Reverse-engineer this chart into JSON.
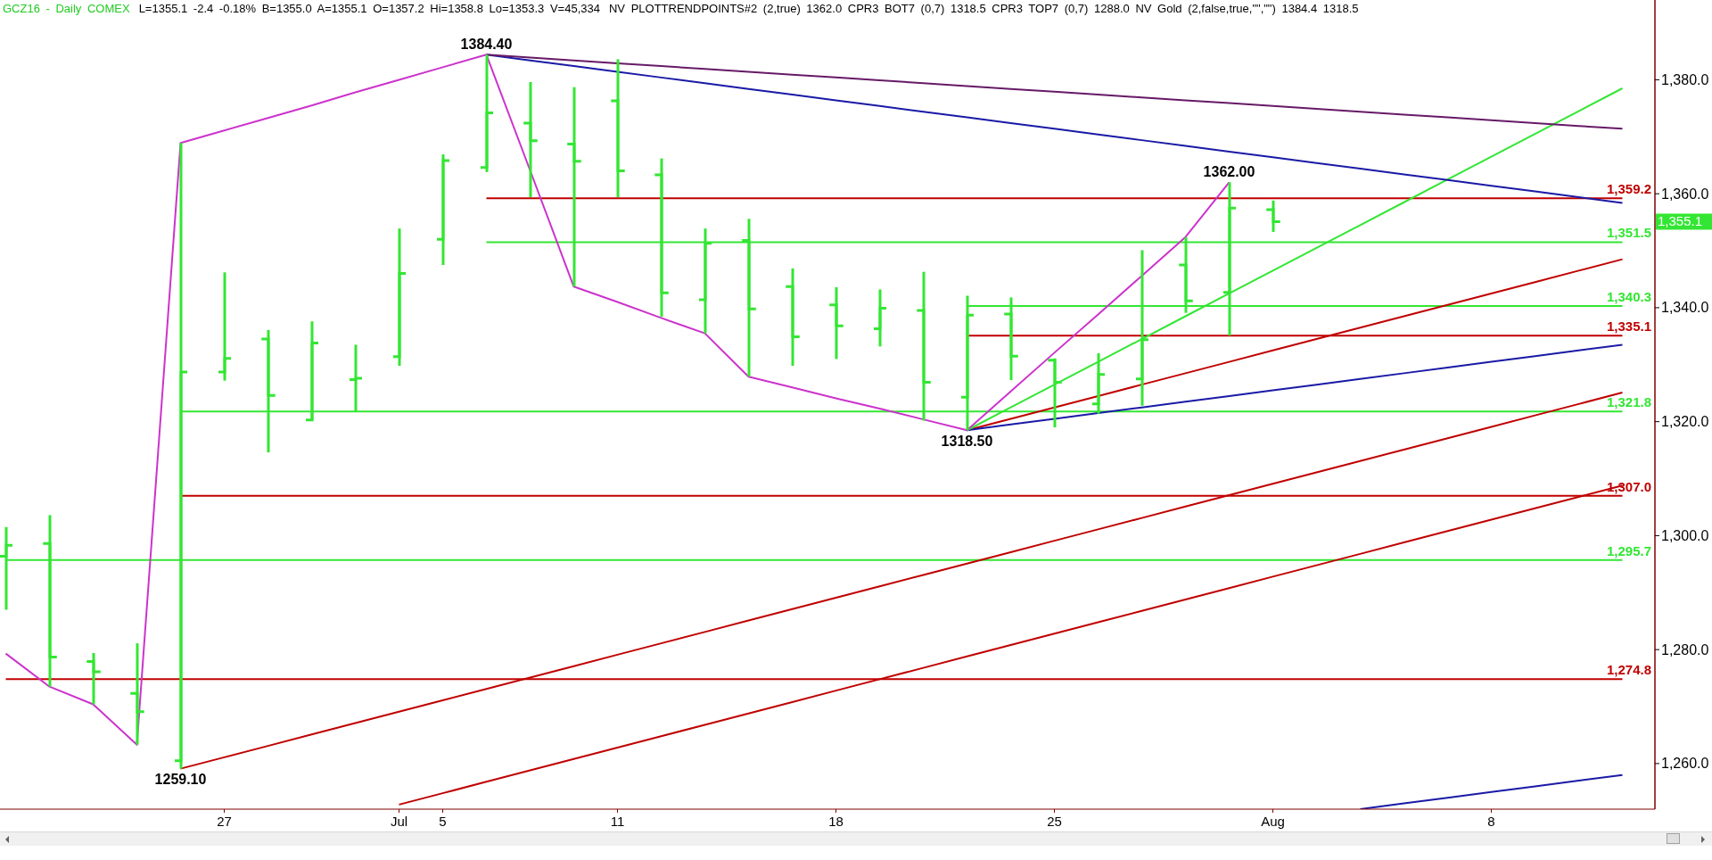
{
  "chart_data": {
    "type": "candlestick",
    "title": "GCZ16 - Daily COMEX",
    "subtitle": "L=1355.1 -2.4 -0.18% B=1355.0 A=1355.1 O=1357.2 Hi=1358.8 Lo=1353.3 V=45,334",
    "categories": [
      null,
      null,
      null,
      null,
      null,
      "27",
      null,
      null,
      null,
      "Jul",
      "5",
      null,
      null,
      null,
      "11",
      null,
      null,
      null,
      null,
      "18",
      null,
      null,
      null,
      null,
      "25",
      null,
      null,
      null,
      null,
      "Aug",
      null,
      null,
      null,
      null,
      "8",
      null,
      null,
      null
    ],
    "color": "#33e633",
    "ohlc": [
      [
        1296.4,
        1301.5,
        1287.0,
        1298.3
      ],
      [
        1298.6,
        1303.6,
        1273.5,
        1278.7
      ],
      [
        1277.9,
        1279.4,
        1270.4,
        1276.1
      ],
      [
        1272.3,
        1281.1,
        1263.3,
        1269.1
      ],
      [
        1260.5,
        1368.9,
        1259.1,
        1328.7
      ],
      [
        1328.7,
        1346.2,
        1327.2,
        1331.1
      ],
      [
        1334.5,
        1336.1,
        1314.6,
        1324.6
      ],
      [
        1320.3,
        1337.6,
        1320.2,
        1333.8
      ],
      [
        1327.4,
        1333.5,
        1321.8,
        1327.6
      ],
      [
        1331.4,
        1353.9,
        1329.8,
        1346.0
      ],
      [
        1352.0,
        1366.9,
        1347.5,
        1365.8
      ],
      [
        1364.6,
        1384.4,
        1363.8,
        1374.2
      ],
      [
        1372.4,
        1379.6,
        1359.4,
        1369.3
      ],
      [
        1368.7,
        1378.7,
        1343.7,
        1365.7
      ],
      [
        1376.3,
        1383.6,
        1359.4,
        1364.0
      ],
      [
        1363.3,
        1366.2,
        1338.4,
        1342.6
      ],
      [
        1341.4,
        1353.9,
        1335.5,
        1351.3
      ],
      [
        1351.8,
        1355.6,
        1327.9,
        1339.8
      ],
      [
        1343.7,
        1346.9,
        1329.8,
        1334.9
      ],
      [
        1340.5,
        1343.6,
        1331.0,
        1336.8
      ],
      [
        1336.3,
        1343.2,
        1333.2,
        1339.9
      ],
      [
        1339.5,
        1346.3,
        1320.2,
        1326.9
      ],
      [
        1324.3,
        1342.1,
        1318.5,
        1338.7
      ],
      [
        1338.9,
        1341.8,
        1327.3,
        1331.5
      ],
      [
        1330.8,
        1331.1,
        1319.0,
        1326.9
      ],
      [
        1323.1,
        1332.0,
        1321.4,
        1328.3
      ],
      [
        1327.5,
        1350.1,
        1322.8,
        1334.4
      ],
      [
        1347.5,
        1352.4,
        1339.1,
        1341.2
      ],
      [
        1342.7,
        1362.0,
        1335.1,
        1357.5
      ],
      [
        1357.2,
        1358.8,
        1353.3,
        1355.1
      ],
      null,
      null,
      null,
      null,
      null,
      null,
      null,
      null
    ],
    "series": [
      {
        "type": "line",
        "color": "#c00000",
        "values": [
          1274.8,
          1274.8,
          1274.8,
          1274.8,
          1274.8,
          1274.8,
          1274.8,
          1274.8,
          1274.8,
          1274.8,
          1274.8,
          1274.8,
          1274.8,
          1274.8,
          1274.8,
          1274.8,
          1274.8,
          1274.8,
          1274.8,
          1274.8,
          1274.8,
          1274.8,
          1274.8,
          1274.8,
          1274.8,
          1274.8,
          1274.8,
          1274.8,
          1274.8,
          1274.8,
          1274.8,
          1274.8,
          1274.8,
          1274.8,
          1274.8,
          1274.8,
          1274.8,
          1274.8
        ],
        "value_labels": [
          null,
          null,
          null,
          null,
          null,
          null,
          null,
          null,
          null,
          null,
          null,
          null,
          null,
          null,
          null,
          null,
          null,
          null,
          null,
          null,
          null,
          null,
          null,
          null,
          null,
          null,
          null,
          null,
          null,
          null,
          null,
          null,
          null,
          null,
          null,
          null,
          null,
          "1,274.8"
        ]
      },
      {
        "type": "line",
        "color": "#33e633",
        "values": [
          1295.7,
          1295.7,
          1295.7,
          1295.7,
          1295.7,
          1295.7,
          1295.7,
          1295.7,
          1295.7,
          1295.7,
          1295.7,
          1295.7,
          1295.7,
          1295.7,
          1295.7,
          1295.7,
          1295.7,
          1295.7,
          1295.7,
          1295.7,
          1295.7,
          1295.7,
          1295.7,
          1295.7,
          1295.7,
          1295.7,
          1295.7,
          1295.7,
          1295.7,
          1295.7,
          1295.7,
          1295.7,
          1295.7,
          1295.7,
          1295.7,
          1295.7,
          1295.7,
          1295.7
        ],
        "value_labels": [
          null,
          null,
          null,
          null,
          null,
          null,
          null,
          null,
          null,
          null,
          null,
          null,
          null,
          null,
          null,
          null,
          null,
          null,
          null,
          null,
          null,
          null,
          null,
          null,
          null,
          null,
          null,
          null,
          null,
          null,
          null,
          null,
          null,
          null,
          null,
          null,
          null,
          "1,295.7"
        ]
      },
      {
        "type": "line",
        "color": "#c00000",
        "values": [
          null,
          null,
          null,
          null,
          1307,
          1307,
          1307,
          1307,
          1307,
          1307,
          1307,
          1307,
          1307,
          1307,
          1307,
          1307,
          1307,
          1307,
          1307,
          1307,
          1307,
          1307,
          1307,
          1307,
          1307,
          1307,
          1307,
          1307,
          1307,
          1307,
          1307,
          1307,
          1307,
          1307,
          1307,
          1307,
          1307,
          1307
        ],
        "value_labels": [
          null,
          null,
          null,
          null,
          null,
          null,
          null,
          null,
          null,
          null,
          null,
          null,
          null,
          null,
          null,
          null,
          null,
          null,
          null,
          null,
          null,
          null,
          null,
          null,
          null,
          null,
          null,
          null,
          null,
          null,
          null,
          null,
          null,
          null,
          null,
          null,
          null,
          "1,307.0"
        ]
      },
      {
        "type": "line",
        "color": "#33e633",
        "values": [
          null,
          null,
          null,
          null,
          1321.8,
          1321.8,
          1321.8,
          1321.8,
          1321.8,
          1321.8,
          1321.8,
          1321.8,
          1321.8,
          1321.8,
          1321.8,
          1321.8,
          1321.8,
          1321.8,
          1321.8,
          1321.8,
          1321.8,
          1321.8,
          1321.8,
          1321.8,
          1321.8,
          1321.8,
          1321.8,
          1321.8,
          1321.8,
          1321.8,
          1321.8,
          1321.8,
          1321.8,
          1321.8,
          1321.8,
          1321.8,
          1321.8,
          1321.8
        ],
        "value_labels": [
          null,
          null,
          null,
          null,
          null,
          null,
          null,
          null,
          null,
          null,
          null,
          null,
          null,
          null,
          null,
          null,
          null,
          null,
          null,
          null,
          null,
          null,
          null,
          null,
          null,
          null,
          null,
          null,
          null,
          null,
          null,
          null,
          null,
          null,
          null,
          null,
          null,
          "1,321.8"
        ]
      },
      {
        "type": "line",
        "color": "#c00000",
        "values": [
          null,
          null,
          null,
          null,
          null,
          null,
          null,
          null,
          null,
          null,
          null,
          null,
          null,
          null,
          null,
          null,
          null,
          null,
          null,
          null,
          null,
          null,
          1335.1,
          1335.1,
          1335.1,
          1335.1,
          1335.1,
          1335.1,
          1335.1,
          1335.1,
          1335.1,
          1335.1,
          1335.1,
          1335.1,
          1335.1,
          1335.1,
          1335.1,
          1335.1
        ],
        "value_labels": [
          null,
          null,
          null,
          null,
          null,
          null,
          null,
          null,
          null,
          null,
          null,
          null,
          null,
          null,
          null,
          null,
          null,
          null,
          null,
          null,
          null,
          null,
          null,
          null,
          null,
          null,
          null,
          null,
          null,
          null,
          null,
          null,
          null,
          null,
          null,
          null,
          null,
          "1,335.1"
        ]
      },
      {
        "type": "line",
        "color": "#33e633",
        "values": [
          null,
          null,
          null,
          null,
          null,
          null,
          null,
          null,
          null,
          null,
          null,
          null,
          null,
          null,
          null,
          null,
          null,
          null,
          null,
          null,
          null,
          null,
          1340.3,
          1340.3,
          1340.3,
          1340.3,
          1340.3,
          1340.3,
          1340.3,
          1340.3,
          1340.3,
          1340.3,
          1340.3,
          1340.3,
          1340.3,
          1340.3,
          1340.3,
          1340.3
        ],
        "value_labels": [
          null,
          null,
          null,
          null,
          null,
          null,
          null,
          null,
          null,
          null,
          null,
          null,
          null,
          null,
          null,
          null,
          null,
          null,
          null,
          null,
          null,
          null,
          null,
          null,
          null,
          null,
          null,
          null,
          null,
          null,
          null,
          null,
          null,
          null,
          null,
          null,
          null,
          "1,340.3"
        ]
      },
      {
        "type": "line",
        "color": "#33e633",
        "values": [
          null,
          null,
          null,
          null,
          null,
          null,
          null,
          null,
          null,
          null,
          null,
          1351.5,
          1351.5,
          1351.5,
          1351.5,
          1351.5,
          1351.5,
          1351.5,
          1351.5,
          1351.5,
          1351.5,
          1351.5,
          1351.5,
          1351.5,
          1351.5,
          1351.5,
          1351.5,
          1351.5,
          1351.5,
          1351.5,
          1351.5,
          1351.5,
          1351.5,
          1351.5,
          1351.5,
          1351.5,
          1351.5,
          1351.5
        ],
        "value_labels": [
          null,
          null,
          null,
          null,
          null,
          null,
          null,
          null,
          null,
          null,
          null,
          null,
          null,
          null,
          null,
          null,
          null,
          null,
          null,
          null,
          null,
          null,
          null,
          null,
          null,
          null,
          null,
          null,
          null,
          null,
          null,
          null,
          null,
          null,
          null,
          null,
          null,
          "1,351.5"
        ]
      },
      {
        "type": "line",
        "color": "#c00000",
        "values": [
          null,
          null,
          null,
          null,
          null,
          null,
          null,
          null,
          null,
          null,
          null,
          1359.2,
          1359.2,
          1359.2,
          1359.2,
          1359.2,
          1359.2,
          1359.2,
          1359.2,
          1359.2,
          1359.2,
          1359.2,
          1359.2,
          1359.2,
          1359.2,
          1359.2,
          1359.2,
          1359.2,
          1359.2,
          1359.2,
          1359.2,
          1359.2,
          1359.2,
          1359.2,
          1359.2,
          1359.2,
          1359.2,
          1359.2
        ],
        "value_labels": [
          null,
          null,
          null,
          null,
          null,
          null,
          null,
          null,
          null,
          null,
          null,
          null,
          null,
          null,
          null,
          null,
          null,
          null,
          null,
          null,
          null,
          null,
          null,
          null,
          null,
          null,
          null,
          null,
          null,
          null,
          null,
          null,
          null,
          null,
          null,
          null,
          null,
          "1,359.2"
        ]
      },
      {
        "type": "line",
        "color": "#c00000",
        "values": [
          null,
          null,
          null,
          null,
          null,
          null,
          null,
          null,
          null,
          1252.8,
          1254.8,
          1256.8,
          1258.8,
          1260.8,
          1262.8,
          1264.8,
          1266.8,
          1268.8,
          1270.8,
          1272.8,
          1274.8,
          1276.8,
          1278.8,
          1280.8,
          1282.8,
          1284.8,
          1286.8,
          1288.8,
          1290.8,
          1292.8,
          1294.8,
          1296.8,
          1298.8,
          1300.8,
          1302.8,
          1304.8,
          1306.8,
          1308.8
        ]
      },
      {
        "type": "line",
        "color": "#c00000",
        "values": [
          null,
          null,
          null,
          null,
          1259.1,
          1261.1,
          1263.1,
          1265.1,
          1267.1,
          1269.1,
          1271.1,
          1273.1,
          1275.1,
          1277.1,
          1279.1,
          1281.1,
          1283.1,
          1285.1,
          1287.1,
          1289.1,
          1291.1,
          1293.1,
          1295.1,
          1297.1,
          1299.1,
          1301.1,
          1303.1,
          1305.1,
          1307.1,
          1309.1,
          1311.1,
          1313.1,
          1315.1,
          1317.1,
          1319.1,
          1321.1,
          1323.1,
          1325.1
        ]
      },
      {
        "type": "line",
        "color": "#1a1aa6",
        "values": [
          null,
          null,
          null,
          null,
          null,
          null,
          null,
          null,
          null,
          null,
          null,
          null,
          null,
          null,
          null,
          null,
          null,
          null,
          null,
          null,
          null,
          null,
          null,
          null,
          null,
          null,
          null,
          null,
          null,
          null,
          null,
          1252.0,
          1253.0,
          1254.0,
          1255.0,
          1256.0,
          1257.0,
          1258.0
        ]
      },
      {
        "type": "line",
        "color": "#c00000",
        "values": [
          null,
          null,
          null,
          null,
          null,
          null,
          null,
          null,
          null,
          null,
          null,
          null,
          null,
          null,
          null,
          null,
          null,
          null,
          null,
          null,
          null,
          null,
          1318.5,
          1320.5,
          1322.5,
          1324.5,
          1326.5,
          1328.5,
          1330.5,
          1332.5,
          1334.5,
          1336.5,
          1338.5,
          1340.5,
          1342.5,
          1344.5,
          1346.5,
          1348.5
        ]
      },
      {
        "type": "line",
        "color": "#1a1aa6",
        "values": [
          null,
          null,
          null,
          null,
          null,
          null,
          null,
          null,
          null,
          null,
          null,
          null,
          null,
          null,
          null,
          null,
          null,
          null,
          null,
          null,
          null,
          null,
          1318.5,
          1319.5,
          1320.5,
          1321.5,
          1322.5,
          1323.5,
          1324.5,
          1325.5,
          1326.5,
          1327.5,
          1328.5,
          1329.5,
          1330.5,
          1331.5,
          1332.5,
          1333.5
        ]
      },
      {
        "type": "line",
        "color": "#33e633",
        "values": [
          null,
          null,
          null,
          null,
          null,
          null,
          null,
          null,
          null,
          null,
          null,
          null,
          null,
          null,
          null,
          null,
          null,
          null,
          null,
          null,
          null,
          null,
          1318.5,
          1322.5,
          1326.5,
          1330.5,
          1334.5,
          1338.5,
          1342.5,
          1346.5,
          1350.5,
          1354.5,
          1358.5,
          1362.5,
          1366.5,
          1370.5,
          1374.5,
          1378.5
        ]
      },
      {
        "type": "line",
        "color": "#1a1aa6",
        "values": [
          null,
          null,
          null,
          null,
          null,
          null,
          null,
          null,
          null,
          null,
          null,
          1384.4,
          1383.4,
          1382.4,
          1381.4,
          1380.4,
          1379.4,
          1378.4,
          1377.4,
          1376.4,
          1375.4,
          1374.4,
          1373.4,
          1372.4,
          1371.4,
          1370.4,
          1369.4,
          1368.4,
          1367.4,
          1366.4,
          1365.4,
          1364.4,
          1363.4,
          1362.4,
          1361.4,
          1360.4,
          1359.4,
          1358.4
        ]
      },
      {
        "type": "line",
        "color": "#661a66",
        "values": [
          null,
          null,
          null,
          null,
          null,
          null,
          null,
          null,
          null,
          null,
          null,
          1384.4,
          1383.9,
          1383.4,
          1382.9,
          1382.4,
          1381.9,
          1381.4,
          1380.9,
          1380.4,
          1379.9,
          1379.4,
          1378.9,
          1378.4,
          1377.9,
          1377.4,
          1376.9,
          1376.4,
          1375.9,
          1375.4,
          1374.9,
          1374.4,
          1373.9,
          1373.4,
          1372.9,
          1372.4,
          1371.9,
          1371.4
        ]
      },
      {
        "type": "line",
        "color": "#cc33cc",
        "values": [
          1279.3,
          1273.5,
          1270.4,
          1263.3,
          1368.9,
          1371.1,
          1373.3,
          1375.5,
          1377.8,
          1380.0,
          1382.2,
          1384.4,
          1364.1,
          1343.7,
          1341.0,
          1338.2,
          1335.5,
          1327.9,
          1326.0,
          1324.1,
          1322.3,
          1320.4,
          1318.5,
          1325.3,
          1332.1,
          1338.8,
          1345.6,
          1352.4,
          1362.0,
          null,
          null,
          null,
          null,
          null,
          null,
          null,
          null,
          null
        ]
      }
    ],
    "ylim": [
      1252,
      1394
    ],
    "yticks": [
      {
        "value": 1260,
        "label": "1,260.0"
      },
      {
        "value": 1280,
        "label": "1,280.0"
      },
      {
        "value": 1300,
        "label": "1,300.0"
      },
      {
        "value": 1320,
        "label": "1,320.0"
      },
      {
        "value": 1340,
        "label": "1,340.0"
      },
      {
        "value": 1355.1,
        "label": "1,355.1"
      },
      {
        "value": 1360,
        "label": "1,360.0"
      },
      {
        "value": 1380,
        "label": "1,380.0"
      }
    ],
    "annotations": [
      "NV PLOTTRENDPOINTS#2 (2,true) 1362.0 CPR3 BOT7 (0,7) 1318.5 CPR3 TOP7 (0,7) 1288.0 NV Gold (2,false,true,\"\",\"\") 1384.4 1318.5",
      {
        "text": "1384.40",
        "y": 1384.4
      },
      {
        "text": "1259.10",
        "y": 1259.1
      },
      {
        "text": "1318.50",
        "y": 1318.5
      },
      {
        "text": "1362.00",
        "y": 1362.0
      }
    ]
  }
}
